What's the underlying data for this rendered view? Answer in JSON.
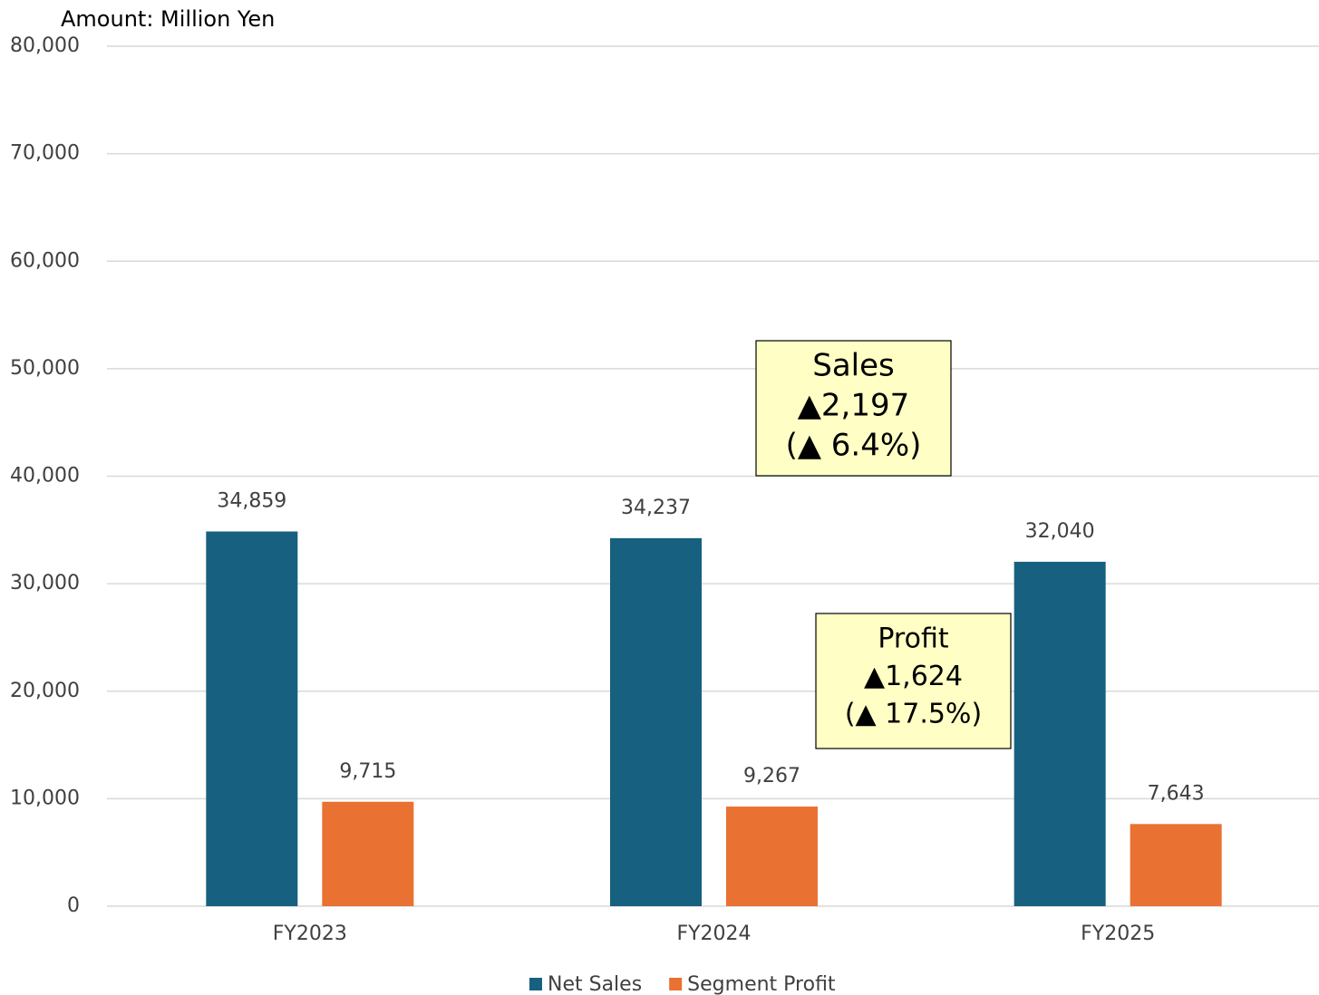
{
  "chart_data": {
    "type": "bar",
    "y_axis_label": "Amount: Million Yen",
    "categories": [
      "FY2023",
      "FY2024",
      "FY2025"
    ],
    "series": [
      {
        "name": "Net Sales",
        "color": "#17607f",
        "values": [
          34859,
          34237,
          32040
        ],
        "value_labels": [
          "34,859",
          "34,237",
          "32,040"
        ]
      },
      {
        "name": "Segment Profit",
        "color": "#e97132",
        "values": [
          9715,
          9267,
          7643
        ],
        "value_labels": [
          "9,715",
          "9,267",
          "7,643"
        ]
      }
    ],
    "ylim": [
      0,
      80000
    ],
    "yticks": [
      0,
      {
        "value": 10000,
        "label": "10,000"
      },
      {
        "value": 20000,
        "label": "20,000"
      },
      {
        "value": 30000,
        "label": "30,000"
      },
      {
        "value": 40000,
        "label": "40,000"
      },
      {
        "value": 50000,
        "label": "50,000"
      },
      {
        "value": 60000,
        "label": "60,000"
      },
      {
        "value": 70000,
        "label": "70,000"
      },
      {
        "value": 80000,
        "label": "80,000"
      }
    ],
    "grid": true,
    "legend": "bottom",
    "annotations": [
      {
        "lines": [
          "Sales",
          "▲2,197",
          "(▲ 6.4%)"
        ]
      },
      {
        "lines": [
          "Profit",
          "▲1,624",
          "(▲ 17.5%)"
        ]
      }
    ]
  }
}
